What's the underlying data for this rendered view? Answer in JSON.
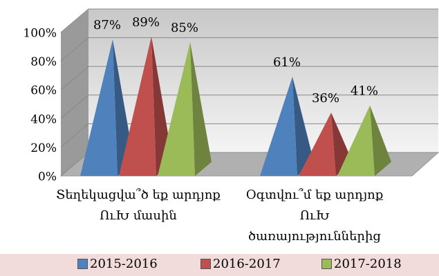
{
  "chart_data": {
    "type": "pyramid3d",
    "categories": [
      "Տեղեկացվա՞ծ եք արդյոք ՈւԽ մասին",
      "Օգտվու՞մ եք արդյոք ՈւԽ ծառայություններից"
    ],
    "series": [
      {
        "name": "2015-2016",
        "color": "#4f81bd",
        "values": [
          87,
          61
        ],
        "value_labels": [
          "87%",
          "61%"
        ]
      },
      {
        "name": "2016-2017",
        "color": "#c0504d",
        "values": [
          89,
          36
        ],
        "value_labels": [
          "89%",
          "36%"
        ]
      },
      {
        "name": "2017-2018",
        "color": "#9bbb59",
        "values": [
          85,
          41
        ],
        "value_labels": [
          "85%",
          "41%"
        ]
      }
    ],
    "ylim": [
      0,
      100
    ],
    "yticks": [
      {
        "value": 0,
        "label": "0%"
      },
      {
        "value": 20,
        "label": "20%"
      },
      {
        "value": 40,
        "label": "40%"
      },
      {
        "value": 60,
        "label": "60%"
      },
      {
        "value": 80,
        "label": "80%"
      },
      {
        "value": 100,
        "label": "100%"
      }
    ],
    "grid": true,
    "legend": "bottom"
  }
}
